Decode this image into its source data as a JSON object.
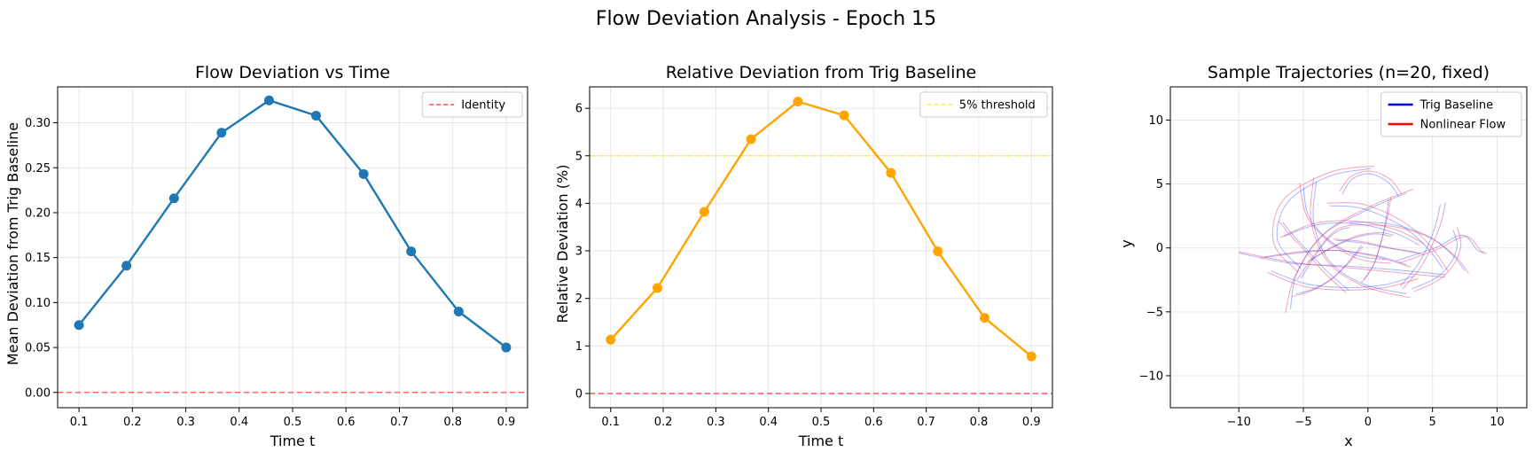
{
  "figure": {
    "suptitle": "Flow Deviation Analysis - Epoch 15"
  },
  "chart_data": [
    {
      "type": "line",
      "title": "Flow Deviation vs Time",
      "xlabel": "Time t",
      "ylabel": "Mean Deviation from Trig Baseline",
      "xlim": [
        0.06,
        0.94
      ],
      "ylim": [
        -0.017,
        0.34
      ],
      "xticks": [
        0.1,
        0.2,
        0.3,
        0.4,
        0.5,
        0.6,
        0.7,
        0.8,
        0.9
      ],
      "xtick_labels": [
        "0.1",
        "0.2",
        "0.3",
        "0.4",
        "0.5",
        "0.6",
        "0.7",
        "0.8",
        "0.9"
      ],
      "yticks": [
        0.0,
        0.05,
        0.1,
        0.15,
        0.2,
        0.25,
        0.3
      ],
      "ytick_labels": [
        "0.00",
        "0.05",
        "0.10",
        "0.15",
        "0.20",
        "0.25",
        "0.30"
      ],
      "grid": true,
      "legend_position": "upper right",
      "series": [
        {
          "color": "#1f77b4",
          "markers": true,
          "x": [
            0.1,
            0.189,
            0.278,
            0.367,
            0.456,
            0.544,
            0.633,
            0.722,
            0.811,
            0.9
          ],
          "y": [
            0.075,
            0.141,
            0.216,
            0.289,
            0.325,
            0.308,
            0.243,
            0.157,
            0.09,
            0.05
          ]
        }
      ],
      "hlines": [
        {
          "name": "Identity",
          "y": 0.0,
          "color": "#ff4c4c",
          "style": "dashed"
        }
      ],
      "legend": [
        {
          "label": "Identity",
          "color": "#ff4c4c",
          "style": "dashed"
        }
      ]
    },
    {
      "type": "line",
      "title": "Relative Deviation from Trig Baseline",
      "xlabel": "Time t",
      "ylabel": "Relative Deviation (%)",
      "xlim": [
        0.06,
        0.94
      ],
      "ylim": [
        -0.3,
        6.45
      ],
      "xticks": [
        0.1,
        0.2,
        0.3,
        0.4,
        0.5,
        0.6,
        0.7,
        0.8,
        0.9
      ],
      "xtick_labels": [
        "0.1",
        "0.2",
        "0.3",
        "0.4",
        "0.5",
        "0.6",
        "0.7",
        "0.8",
        "0.9"
      ],
      "yticks": [
        0,
        1,
        2,
        3,
        4,
        5,
        6
      ],
      "ytick_labels": [
        "0",
        "1",
        "2",
        "3",
        "4",
        "5",
        "6"
      ],
      "grid": true,
      "legend_position": "upper right",
      "series": [
        {
          "color": "#ffa500",
          "markers": true,
          "x": [
            0.1,
            0.189,
            0.278,
            0.367,
            0.456,
            0.544,
            0.633,
            0.722,
            0.811,
            0.9
          ],
          "y": [
            1.13,
            2.22,
            3.82,
            5.35,
            6.14,
            5.85,
            4.64,
            2.99,
            1.59,
            0.78
          ]
        }
      ],
      "hlines": [
        {
          "name": "5% threshold",
          "y": 5.0,
          "color": "#ffe94d",
          "style": "dashed"
        },
        {
          "name": "zero",
          "y": 0.0,
          "color": "#ff4c4c",
          "style": "dashed"
        }
      ],
      "legend": [
        {
          "label": "5% threshold",
          "color": "#ffe94d",
          "style": "dashed"
        }
      ]
    },
    {
      "type": "line",
      "title": "Sample Trajectories (n=20, fixed)",
      "xlabel": "x",
      "ylabel": "y",
      "xlim": [
        -15.3,
        12.3
      ],
      "ylim": [
        -12.5,
        12.6
      ],
      "xticks": [
        -10,
        -5,
        0,
        5,
        10
      ],
      "xtick_labels": [
        "−10",
        "−5",
        "0",
        "5",
        "10"
      ],
      "yticks": [
        -10,
        -5,
        0,
        5,
        10
      ],
      "ytick_labels": [
        "−10",
        "−5",
        "0",
        "5",
        "10"
      ],
      "grid": true,
      "legend_position": "upper right",
      "legend": [
        {
          "label": "Trig Baseline",
          "color": "#0000ff",
          "style": "solid"
        },
        {
          "label": "Nonlinear Flow",
          "color": "#ff0000",
          "style": "solid"
        }
      ],
      "trajectories": [
        {
          "baseline": [
            [
              -10,
              -0.4
            ],
            [
              -6,
              -1.2
            ],
            [
              -2,
              -1.4
            ],
            [
              2,
              -1.7
            ],
            [
              6,
              -2.1
            ]
          ],
          "nonlinear": [
            [
              -10,
              -0.3
            ],
            [
              -6,
              -1.1
            ],
            [
              -2,
              -1.5
            ],
            [
              2,
              -1.9
            ],
            [
              6,
              -2.3
            ]
          ]
        },
        {
          "baseline": [
            [
              -6,
              -4.8
            ],
            [
              -5.5,
              -2
            ],
            [
              -3.5,
              1
            ],
            [
              0,
              3
            ],
            [
              3,
              4.3
            ]
          ],
          "nonlinear": [
            [
              -6.4,
              -5.1
            ],
            [
              -5.6,
              -2.1
            ],
            [
              -3.3,
              1.2
            ],
            [
              0.3,
              3.3
            ],
            [
              3.5,
              4.6
            ]
          ]
        },
        {
          "baseline": [
            [
              -5,
              4.8
            ],
            [
              -4.6,
              2.5
            ],
            [
              -3,
              0.6
            ],
            [
              -0.8,
              -0.6
            ],
            [
              1.4,
              -0.9
            ]
          ],
          "nonlinear": [
            [
              -5.3,
              5.1
            ],
            [
              -4.7,
              2.4
            ],
            [
              -2.9,
              0.4
            ],
            [
              -0.6,
              -0.9
            ],
            [
              1.8,
              -1.2
            ]
          ]
        },
        {
          "baseline": [
            [
              -4,
              5.2
            ],
            [
              -4.2,
              2
            ],
            [
              -3,
              -1
            ],
            [
              -0.4,
              -2.8
            ],
            [
              3,
              -3.6
            ]
          ],
          "nonlinear": [
            [
              -4.2,
              5.5
            ],
            [
              -4.4,
              2.1
            ],
            [
              -3.1,
              -1.1
            ],
            [
              -0.3,
              -3
            ],
            [
              3.3,
              -3.9
            ]
          ]
        },
        {
          "baseline": [
            [
              0.2,
              6.2
            ],
            [
              -3,
              5.6
            ],
            [
              -6.2,
              3.6
            ],
            [
              -7,
              0.6
            ],
            [
              -5.2,
              -1.6
            ]
          ],
          "nonlinear": [
            [
              0.5,
              6.4
            ],
            [
              -3,
              5.9
            ],
            [
              -6.6,
              3.7
            ],
            [
              -7.3,
              0.4
            ],
            [
              -5.4,
              -1.9
            ]
          ]
        },
        {
          "baseline": [
            [
              -1.5,
              2
            ],
            [
              1.5,
              1.9
            ],
            [
              4.5,
              1
            ],
            [
              6.5,
              -0.5
            ],
            [
              7.5,
              -1.8
            ]
          ],
          "nonlinear": [
            [
              -1.4,
              1.8
            ],
            [
              1.8,
              1.7
            ],
            [
              4.8,
              0.8
            ],
            [
              6.8,
              -0.7
            ],
            [
              7.8,
              -2
            ]
          ]
        },
        {
          "baseline": [
            [
              -3,
              3.3
            ],
            [
              -0.5,
              3.1
            ],
            [
              2.5,
              1.8
            ],
            [
              4.5,
              0.1
            ],
            [
              5.8,
              -1.6
            ]
          ],
          "nonlinear": [
            [
              -3.2,
              3.5
            ],
            [
              -0.3,
              3.4
            ],
            [
              2.8,
              2
            ],
            [
              4.8,
              0.2
            ],
            [
              6.2,
              -1.8
            ]
          ]
        },
        {
          "baseline": [
            [
              -6.5,
              0.9
            ],
            [
              -4,
              1.8
            ],
            [
              -1,
              1.9
            ],
            [
              2,
              1.2
            ],
            [
              4,
              0.2
            ]
          ],
          "nonlinear": [
            [
              -6.8,
              0.8
            ],
            [
              -4.2,
              1.9
            ],
            [
              -1,
              2.1
            ],
            [
              2.2,
              1.4
            ],
            [
              4.4,
              0.3
            ]
          ]
        },
        {
          "baseline": [
            [
              -8,
              -0.7
            ],
            [
              -5.2,
              -0.3
            ],
            [
              -2.3,
              -0.2
            ],
            [
              0.6,
              -0.6
            ],
            [
              3,
              -1.3
            ]
          ],
          "nonlinear": [
            [
              -8.3,
              -0.8
            ],
            [
              -5.4,
              -0.4
            ],
            [
              -2.4,
              -0.2
            ],
            [
              0.7,
              -0.7
            ],
            [
              3.3,
              -1.5
            ]
          ]
        },
        {
          "baseline": [
            [
              2.2,
              -1
            ],
            [
              5.2,
              0
            ],
            [
              7.3,
              1
            ],
            [
              8.5,
              -0.2
            ],
            [
              9,
              -0.3
            ]
          ],
          "nonlinear": [
            [
              2.4,
              -1.2
            ],
            [
              5.4,
              -0.1
            ],
            [
              7.6,
              0.9
            ],
            [
              8.8,
              -0.3
            ],
            [
              9.2,
              -0.4
            ]
          ]
        },
        {
          "baseline": [
            [
              -1.5,
              -3.3
            ],
            [
              -3.2,
              -1.8
            ],
            [
              -4.6,
              -0.3
            ],
            [
              -5.8,
              1
            ],
            [
              -6.6,
              2
            ]
          ],
          "nonlinear": [
            [
              -1.7,
              -3.5
            ],
            [
              -3.4,
              -1.9
            ],
            [
              -4.8,
              -0.3
            ],
            [
              -6.1,
              1.1
            ],
            [
              -6.9,
              2.1
            ]
          ]
        },
        {
          "baseline": [
            [
              -0.3,
              -2.5
            ],
            [
              0.5,
              -1.2
            ],
            [
              1,
              0.4
            ],
            [
              1.4,
              2.2
            ],
            [
              1.6,
              3.8
            ]
          ],
          "nonlinear": [
            [
              -0.5,
              -2.7
            ],
            [
              0.4,
              -1.4
            ],
            [
              1,
              0.4
            ],
            [
              1.5,
              2.4
            ],
            [
              1.8,
              4
            ]
          ]
        },
        {
          "baseline": [
            [
              2.5,
              -3
            ],
            [
              3.8,
              -1.4
            ],
            [
              4.7,
              0.3
            ],
            [
              5.3,
              2
            ],
            [
              5.6,
              3.4
            ]
          ],
          "nonlinear": [
            [
              2.7,
              -3.2
            ],
            [
              4.1,
              -1.5
            ],
            [
              5,
              0.3
            ],
            [
              5.7,
              2.1
            ],
            [
              6,
              3.6
            ]
          ]
        },
        {
          "baseline": [
            [
              -7.5,
              -1.8
            ],
            [
              -4.8,
              -2.8
            ],
            [
              -1.8,
              -3.1
            ],
            [
              1.2,
              -2.9
            ],
            [
              3.6,
              -2.2
            ]
          ],
          "nonlinear": [
            [
              -7.8,
              -1.9
            ],
            [
              -5,
              -3
            ],
            [
              -1.8,
              -3.3
            ],
            [
              1.3,
              -3.1
            ],
            [
              3.9,
              -2.4
            ]
          ]
        },
        {
          "baseline": [
            [
              -0.5,
              0.2
            ],
            [
              -1.6,
              -1.2
            ],
            [
              -2.8,
              -2.4
            ],
            [
              -4.2,
              -3.2
            ],
            [
              -5.6,
              -3.6
            ]
          ],
          "nonlinear": [
            [
              -0.4,
              0.1
            ],
            [
              -1.7,
              -1.4
            ],
            [
              -3,
              -2.6
            ],
            [
              -4.5,
              -3.4
            ],
            [
              -5.9,
              -3.8
            ]
          ]
        },
        {
          "baseline": [
            [
              -2.5,
              0.6
            ],
            [
              -0.5,
              0.4
            ],
            [
              1.5,
              0
            ],
            [
              3,
              -0.2
            ],
            [
              4,
              -0.4
            ]
          ],
          "nonlinear": [
            [
              -2.7,
              0.7
            ],
            [
              -0.5,
              0.5
            ],
            [
              1.7,
              0
            ],
            [
              3.2,
              -0.3
            ],
            [
              4.3,
              -0.5
            ]
          ]
        },
        {
          "baseline": [
            [
              -4.5,
              -1
            ],
            [
              -2.8,
              0
            ],
            [
              -1,
              0.8
            ],
            [
              0.6,
              1.1
            ],
            [
              1.8,
              0.9
            ]
          ],
          "nonlinear": [
            [
              -4.7,
              -1.1
            ],
            [
              -2.9,
              0
            ],
            [
              -1,
              0.9
            ],
            [
              0.8,
              1.2
            ],
            [
              2,
              1
            ]
          ]
        },
        {
          "baseline": [
            [
              3.4,
              -3.2
            ],
            [
              5.2,
              -2.4
            ],
            [
              6.4,
              -1.2
            ],
            [
              6.9,
              0.2
            ],
            [
              6.6,
              1.4
            ]
          ],
          "nonlinear": [
            [
              3.6,
              -3.4
            ],
            [
              5.5,
              -2.5
            ],
            [
              6.7,
              -1.2
            ],
            [
              7.2,
              0.3
            ],
            [
              6.9,
              1.6
            ]
          ]
        },
        {
          "baseline": [
            [
              -2,
              4.2
            ],
            [
              -1.2,
              5.4
            ],
            [
              0.2,
              5.8
            ],
            [
              1.6,
              5.1
            ],
            [
              2.4,
              4
            ]
          ],
          "nonlinear": [
            [
              -2.2,
              4.4
            ],
            [
              -1.3,
              5.6
            ],
            [
              0.3,
              6
            ],
            [
              1.8,
              5.3
            ],
            [
              2.6,
              4.2
            ]
          ]
        },
        {
          "baseline": [
            [
              -5.2,
              -2.4
            ],
            [
              -4.2,
              -0.8
            ],
            [
              -3.2,
              0.6
            ],
            [
              -2.2,
              1.4
            ],
            [
              -1.4,
              1.6
            ]
          ],
          "nonlinear": [
            [
              -5.5,
              -2.5
            ],
            [
              -4.4,
              -0.9
            ],
            [
              -3.3,
              0.6
            ],
            [
              -2.3,
              1.5
            ],
            [
              -1.3,
              1.8
            ]
          ]
        }
      ]
    }
  ]
}
